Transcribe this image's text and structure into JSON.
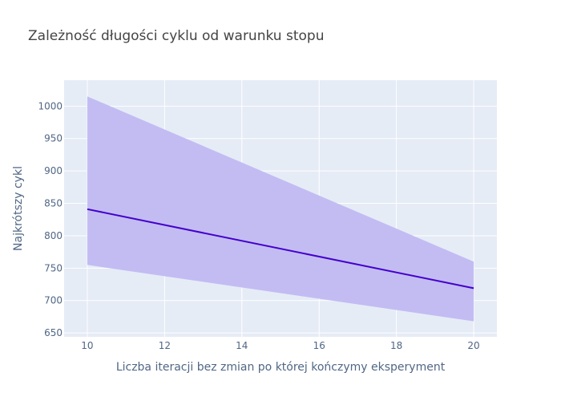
{
  "chart_data": {
    "type": "line",
    "title": "Zależność długości cyklu od warunku stopu",
    "xlabel": "Liczba iteracji bez zmian po której kończymy eksperyment",
    "ylabel": "Najkrótszy cykl",
    "xlim": [
      9.4,
      20.6
    ],
    "ylim": [
      644,
      1040
    ],
    "x_ticks": [
      10,
      12,
      14,
      16,
      18,
      20
    ],
    "y_ticks": [
      650,
      700,
      750,
      800,
      850,
      900,
      950,
      1000
    ],
    "grid": true,
    "legend": "none",
    "series": [
      {
        "x": [
          10,
          20
        ],
        "y": [
          841,
          719
        ],
        "band_upper": [
          1015,
          760
        ],
        "band_lower": [
          755,
          668
        ],
        "line_color": "#4400cc",
        "band_color": "#c3bcf3"
      }
    ]
  },
  "colors": {
    "plot_background": "#e5ecf6",
    "grid": "#ffffff",
    "text": "#506784"
  }
}
